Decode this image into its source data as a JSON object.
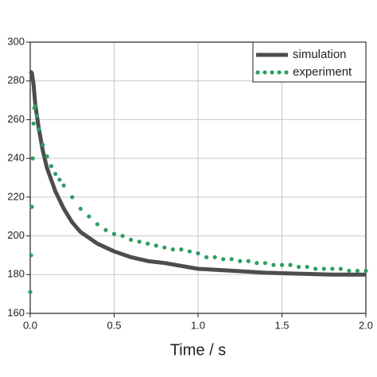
{
  "chart_data": {
    "type": "line",
    "x_label": "Time / s",
    "xlim": [
      0,
      2
    ],
    "ylim": [
      160,
      300
    ],
    "xticks": [
      {
        "value": 0,
        "label": "0.0"
      },
      0.5,
      {
        "value": 1,
        "label": "1.0"
      },
      1.5,
      {
        "value": 2,
        "label": "2.0"
      }
    ],
    "yticks": [
      160,
      180,
      200,
      220,
      240,
      260,
      280,
      300
    ],
    "grid": true,
    "legend": "top-right",
    "series": [
      {
        "name": "simulation",
        "color": "#4d4d4d",
        "mode": "line",
        "x": [
          0,
          0.01,
          0.02,
          0.03,
          0.05,
          0.075,
          0.1,
          0.15,
          0.2,
          0.25,
          0.3,
          0.4,
          0.5,
          0.6,
          0.7,
          0.8,
          1.0,
          1.2,
          1.4,
          1.6,
          1.8,
          2.0
        ],
        "values": [
          285,
          284,
          278,
          268,
          256,
          244,
          235,
          223,
          214,
          207,
          202,
          196,
          192,
          189,
          187,
          186,
          183,
          182,
          181,
          180.5,
          180,
          180
        ]
      },
      {
        "name": "experiment",
        "color": "#2e9e63",
        "mode": "markers",
        "x": [
          0,
          0.005,
          0.01,
          0.015,
          0.02,
          0.025,
          0.03,
          0.04,
          0.05,
          0.075,
          0.1,
          0.125,
          0.15,
          0.175,
          0.2,
          0.25,
          0.3,
          0.35,
          0.4,
          0.45,
          0.5,
          0.55,
          0.6,
          0.65,
          0.7,
          0.75,
          0.8,
          0.85,
          0.9,
          0.95,
          1.0,
          1.05,
          1.1,
          1.15,
          1.2,
          1.25,
          1.3,
          1.35,
          1.4,
          1.45,
          1.5,
          1.55,
          1.6,
          1.65,
          1.7,
          1.75,
          1.8,
          1.85,
          1.9,
          1.95,
          2.0
        ],
        "values": [
          171,
          190,
          215,
          240,
          258,
          266,
          267,
          262,
          255,
          247,
          241,
          236,
          232,
          229,
          226,
          220,
          214,
          210,
          206,
          203,
          201,
          200,
          198,
          197,
          196,
          195,
          194,
          193,
          193,
          192,
          191,
          189,
          189,
          188,
          188,
          187,
          187,
          186,
          186,
          185,
          185,
          185,
          184,
          184,
          183,
          183,
          183,
          183,
          182,
          182,
          182
        ]
      }
    ]
  }
}
